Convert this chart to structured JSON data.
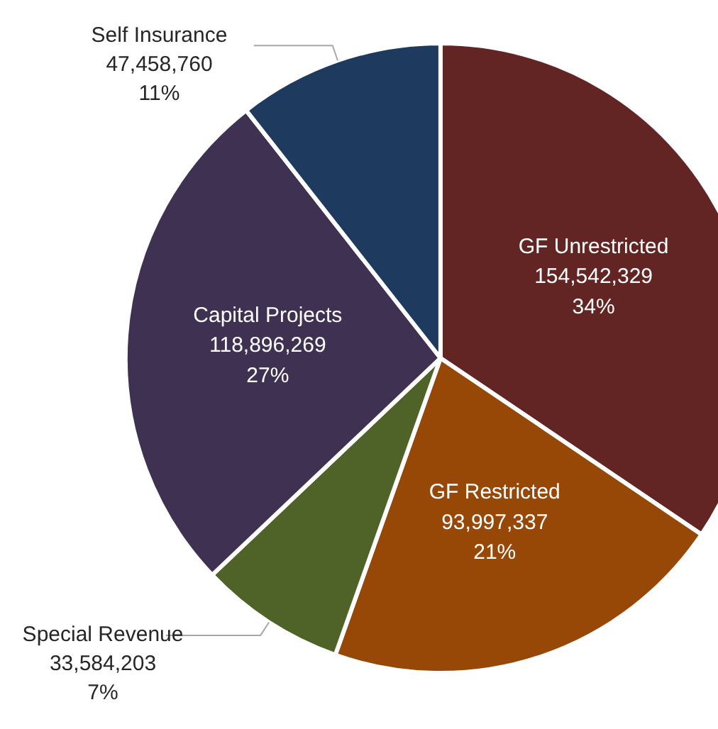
{
  "chart_data": {
    "type": "pie",
    "categories": [
      "GF Unrestricted",
      "GF Restricted",
      "Special Revenue",
      "Capital Projects",
      "Self Insurance"
    ],
    "values": [
      154542329,
      93997337,
      33584203,
      118896269,
      47458760
    ],
    "colors": [
      "#632523",
      "#974806",
      "#4f6228",
      "#3f3151",
      "#1f3a5f"
    ],
    "value_labels": [
      "154,542,329\n34%",
      "93,997,337\n21%",
      "33,584,203\n7%",
      "118,896,269\n27%",
      "47,458,760\n11%"
    ]
  }
}
